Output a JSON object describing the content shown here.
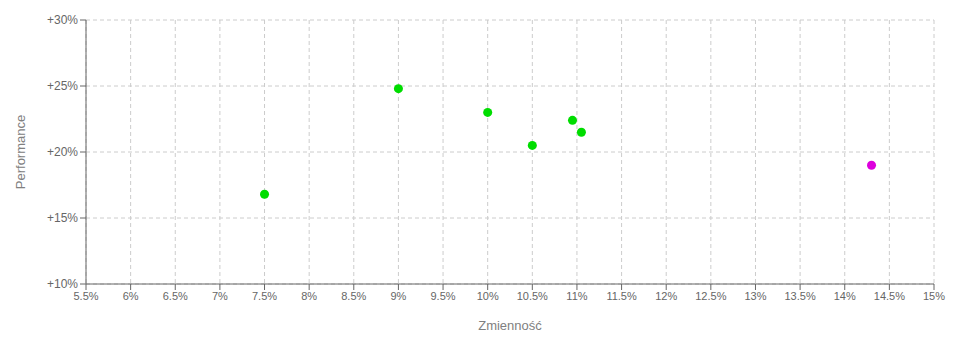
{
  "chart_data": {
    "type": "scatter",
    "xlabel": "Zmienność",
    "ylabel": "Performance",
    "series": [
      {
        "color": "#00dd00",
        "x": [
          0.075,
          0.09,
          0.1,
          0.105,
          0.1095,
          0.1105
        ],
        "values": [
          0.168,
          0.248,
          0.23,
          0.205,
          0.224,
          0.215
        ]
      },
      {
        "color": "#dd00dd",
        "x": [
          0.143
        ],
        "values": [
          0.19
        ]
      }
    ],
    "xlim": [
      0.055,
      0.15
    ],
    "ylim": [
      0.1,
      0.3
    ],
    "xticks": [
      {
        "value": 0.055,
        "label": "5.5%"
      },
      {
        "value": 0.06,
        "label": "6%"
      },
      {
        "value": 0.065,
        "label": "6.5%"
      },
      {
        "value": 0.07,
        "label": "7%"
      },
      {
        "value": 0.075,
        "label": "7.5%"
      },
      {
        "value": 0.08,
        "label": "8%"
      },
      {
        "value": 0.085,
        "label": "8.5%"
      },
      {
        "value": 0.09,
        "label": "9%"
      },
      {
        "value": 0.095,
        "label": "9.5%"
      },
      {
        "value": 0.1,
        "label": "10%"
      },
      {
        "value": 0.105,
        "label": "10.5%"
      },
      {
        "value": 0.11,
        "label": "11%"
      },
      {
        "value": 0.115,
        "label": "11.5%"
      },
      {
        "value": 0.12,
        "label": "12%"
      },
      {
        "value": 0.125,
        "label": "12.5%"
      },
      {
        "value": 0.13,
        "label": "13%"
      },
      {
        "value": 0.135,
        "label": "13.5%"
      },
      {
        "value": 0.14,
        "label": "14%"
      },
      {
        "value": 0.145,
        "label": "14.5%"
      },
      {
        "value": 0.15,
        "label": "15%"
      }
    ],
    "yticks": [
      {
        "value": 0.1,
        "label": "+10%"
      },
      {
        "value": 0.15,
        "label": "+15%"
      },
      {
        "value": 0.2,
        "label": "+20%"
      },
      {
        "value": 0.25,
        "label": "+25%"
      },
      {
        "value": 0.3,
        "label": "+30%"
      }
    ],
    "grid": true
  }
}
